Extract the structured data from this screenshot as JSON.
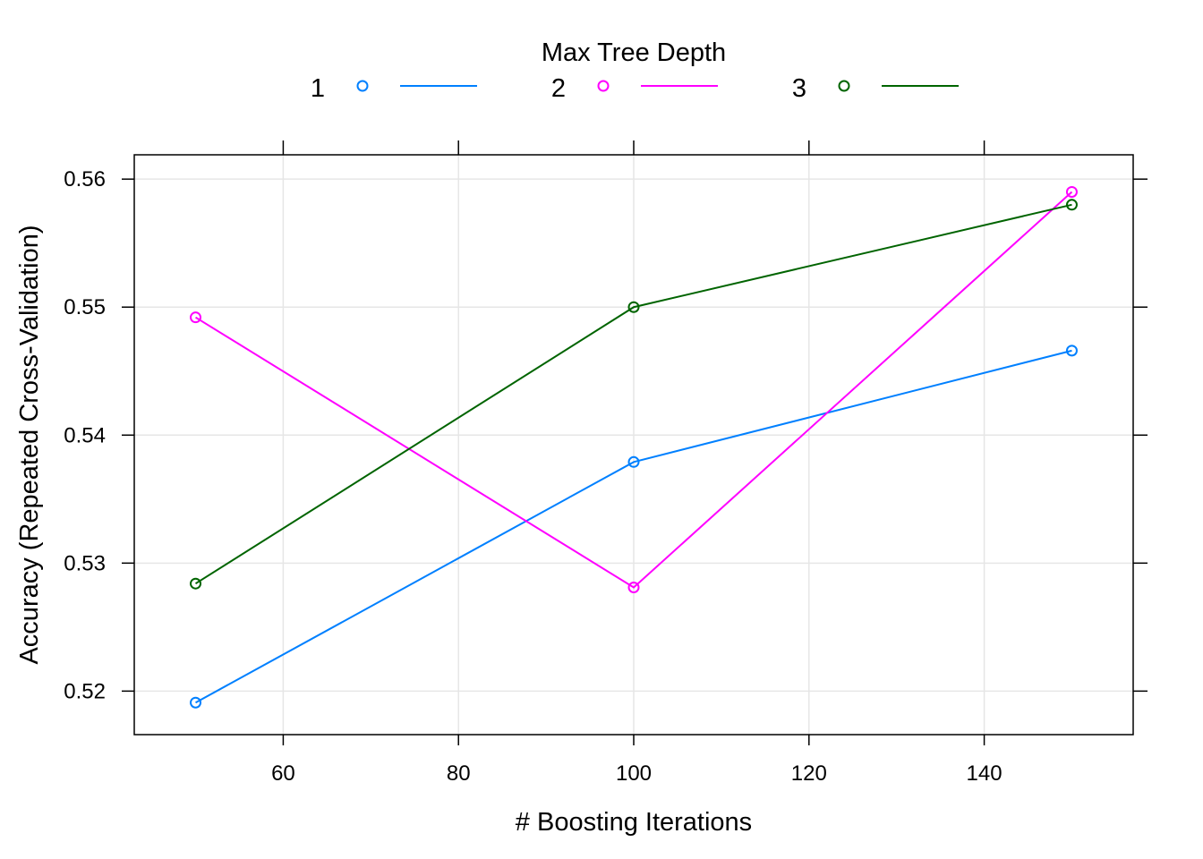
{
  "chart_data": {
    "type": "line",
    "title": "",
    "xlabel": "# Boosting Iterations",
    "ylabel": "Accuracy (Repeated Cross-Validation)",
    "legend_title": "Max Tree Depth",
    "legend_position": "top",
    "grid": true,
    "x": [
      50,
      100,
      150
    ],
    "xlim": [
      43,
      157
    ],
    "ylim": [
      0.5166,
      0.5619
    ],
    "xticks": [
      60,
      80,
      100,
      120,
      140
    ],
    "xtick_labels": [
      "60",
      "80",
      "100",
      "120",
      "140"
    ],
    "yticks": [
      0.52,
      0.53,
      0.54,
      0.55,
      0.56
    ],
    "ytick_labels": [
      "0.52",
      "0.53",
      "0.54",
      "0.55",
      "0.56"
    ],
    "series": [
      {
        "name": "1",
        "color": "#0080ff",
        "values": [
          0.5191,
          0.5379,
          0.5466
        ]
      },
      {
        "name": "2",
        "color": "#ff00ff",
        "values": [
          0.5492,
          0.5281,
          0.559
        ]
      },
      {
        "name": "3",
        "color": "#006400",
        "values": [
          0.5284,
          0.55,
          0.558
        ]
      }
    ]
  }
}
